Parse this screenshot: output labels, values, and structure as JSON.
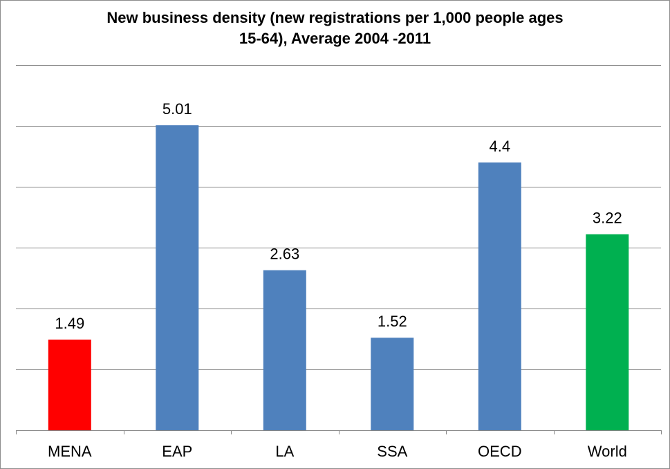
{
  "chart_data": {
    "type": "bar",
    "title": "New business density (new registrations per 1,000 people ages 15-64), Average 2004 -2011",
    "title_lines": [
      "New business density (new registrations per 1,000 people ages",
      "15-64), Average 2004 -2011"
    ],
    "categories": [
      "MENA",
      "EAP",
      "LA",
      "SSA",
      "OECD",
      "World"
    ],
    "values": [
      1.49,
      5.01,
      2.63,
      1.52,
      4.4,
      3.22
    ],
    "value_labels": [
      "1.49",
      "5.01",
      "2.63",
      "1.52",
      "4.4",
      "3.22"
    ],
    "bar_colors": [
      "#ff0000",
      "#4f81bd",
      "#4f81bd",
      "#4f81bd",
      "#4f81bd",
      "#00b050"
    ],
    "xlabel": "",
    "ylabel": "",
    "ylim": [
      0,
      6
    ],
    "ytick_step": 1,
    "grid": true,
    "legend": "none",
    "y_tick_labels_shown": false
  },
  "colors": {
    "gridline": "#868686",
    "axis": "#868686",
    "text": "#000000"
  }
}
